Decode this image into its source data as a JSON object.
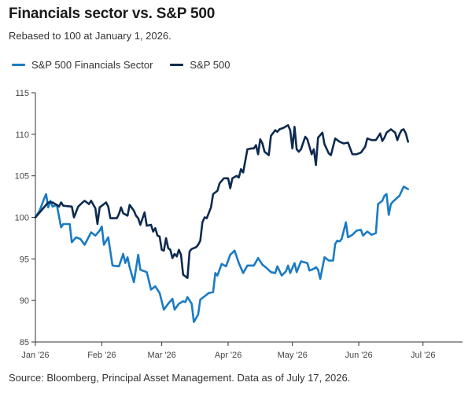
{
  "header": {
    "title": "Financials sector vs. S&P 500",
    "subtitle": "Rebased to 100 at January 1, 2026."
  },
  "footer": {
    "source": "Source: Bloomberg, Principal Asset Management. Data as of July 17, 2026."
  },
  "colors": {
    "financials": "#1a7bc4",
    "sp500": "#0d2a4f",
    "axis": "#333333"
  },
  "chart_data": {
    "type": "line",
    "x_tick_labels": [
      "Jan '26",
      "Feb '26",
      "Mar '26",
      "Apr '26",
      "May '26",
      "Jun '26",
      "Jul '26"
    ],
    "x_tick_days": [
      0,
      31,
      59,
      90,
      120,
      151,
      181
    ],
    "yticks": [
      85,
      90,
      95,
      100,
      105,
      110,
      115
    ],
    "ylim": [
      85,
      115
    ],
    "grid": false,
    "legend": "top-left",
    "series": [
      {
        "name": "S&P 500 Financials Sector",
        "color": "#1a7bc4",
        "points": [
          [
            0,
            100
          ],
          [
            2,
            100.8
          ],
          [
            4,
            102.2
          ],
          [
            5,
            102.8
          ],
          [
            6,
            101.2
          ],
          [
            7,
            102
          ],
          [
            8,
            101.3
          ],
          [
            10,
            101.5
          ],
          [
            12,
            98.8
          ],
          [
            13,
            99.2
          ],
          [
            16,
            99.2
          ],
          [
            17,
            97
          ],
          [
            19,
            97.6
          ],
          [
            21,
            97.4
          ],
          [
            23,
            96.7
          ],
          [
            26,
            98.2
          ],
          [
            28,
            97.8
          ],
          [
            30,
            98.4
          ],
          [
            31,
            98.9
          ],
          [
            32,
            96.7
          ],
          [
            34,
            97.6
          ],
          [
            36,
            94.2
          ],
          [
            39,
            94.1
          ],
          [
            41,
            95.6
          ],
          [
            42,
            94.5
          ],
          [
            43,
            95.2
          ],
          [
            44,
            94
          ],
          [
            46,
            92.2
          ],
          [
            48,
            95.5
          ],
          [
            49,
            93.7
          ],
          [
            52,
            93.4
          ],
          [
            54,
            91.3
          ],
          [
            56,
            91.7
          ],
          [
            58,
            90.9
          ],
          [
            60,
            88.9
          ],
          [
            62,
            89.6
          ],
          [
            64,
            90.2
          ],
          [
            65,
            88.9
          ],
          [
            67,
            89.6
          ],
          [
            69,
            89.9
          ],
          [
            70,
            89.8
          ],
          [
            71,
            90.4
          ],
          [
            73,
            89.6
          ],
          [
            74,
            87.4
          ],
          [
            76,
            88.3
          ],
          [
            77,
            90.1
          ],
          [
            79,
            90.5
          ],
          [
            81,
            90.9
          ],
          [
            83,
            91
          ],
          [
            84,
            93.3
          ],
          [
            85,
            93
          ],
          [
            87,
            94.4
          ],
          [
            89,
            94.1
          ],
          [
            91,
            95.5
          ],
          [
            93,
            96
          ],
          [
            95,
            94.5
          ],
          [
            97,
            93.3
          ],
          [
            99,
            94.2
          ],
          [
            102,
            94.2
          ],
          [
            104,
            95.1
          ],
          [
            106,
            94.3
          ],
          [
            108,
            93.9
          ],
          [
            110,
            93.4
          ],
          [
            112,
            93.3
          ],
          [
            113,
            94.1
          ],
          [
            115,
            93
          ],
          [
            117,
            93.5
          ],
          [
            118,
            94.2
          ],
          [
            119,
            93.3
          ],
          [
            121,
            94.5
          ],
          [
            122,
            93.4
          ],
          [
            124,
            94.7
          ],
          [
            127,
            94.5
          ],
          [
            128,
            93.6
          ],
          [
            130,
            93.8
          ],
          [
            131,
            94
          ],
          [
            132,
            93.7
          ],
          [
            133,
            92.6
          ],
          [
            135,
            95.2
          ],
          [
            137,
            94.8
          ],
          [
            139,
            94.8
          ],
          [
            140,
            96.8
          ],
          [
            141,
            97.2
          ],
          [
            142,
            97.1
          ],
          [
            143,
            97.4
          ],
          [
            145,
            99.4
          ],
          [
            146,
            97.6
          ],
          [
            148,
            97.9
          ],
          [
            150,
            98.4
          ],
          [
            152,
            98.5
          ],
          [
            153,
            97.8
          ],
          [
            155,
            98.3
          ],
          [
            157,
            97.9
          ],
          [
            159,
            98.1
          ],
          [
            160,
            101.6
          ],
          [
            162,
            102
          ],
          [
            163,
            102.6
          ],
          [
            164,
            102.8
          ],
          [
            165,
            100.3
          ],
          [
            166,
            101.6
          ],
          [
            167,
            101.9
          ],
          [
            170,
            102.6
          ],
          [
            172,
            103.7
          ],
          [
            174,
            103.4
          ]
        ]
      },
      {
        "name": "S&P 500",
        "color": "#0d2a4f",
        "points": [
          [
            0,
            100
          ],
          [
            3,
            100.9
          ],
          [
            5,
            101.5
          ],
          [
            6,
            101.8
          ],
          [
            8,
            101.8
          ],
          [
            10,
            101.5
          ],
          [
            11,
            101.3
          ],
          [
            12,
            101.8
          ],
          [
            13,
            101.4
          ],
          [
            17,
            101.3
          ],
          [
            18,
            100
          ],
          [
            20,
            101.3
          ],
          [
            22,
            101.8
          ],
          [
            23,
            102
          ],
          [
            25,
            101.6
          ],
          [
            26,
            102
          ],
          [
            28,
            101.1
          ],
          [
            29,
            99.2
          ],
          [
            30,
            101.2
          ],
          [
            32,
            101.6
          ],
          [
            33,
            101.8
          ],
          [
            34,
            101.3
          ],
          [
            35,
            99.9
          ],
          [
            38,
            99.9
          ],
          [
            39,
            100.4
          ],
          [
            40,
            101.2
          ],
          [
            41,
            100.5
          ],
          [
            43,
            100.2
          ],
          [
            44,
            101.5
          ],
          [
            46,
            100.8
          ],
          [
            47,
            100.2
          ],
          [
            48,
            99.9
          ],
          [
            49,
            99.1
          ],
          [
            51,
            100.6
          ],
          [
            52,
            99
          ],
          [
            54,
            99.1
          ],
          [
            55,
            98.3
          ],
          [
            56,
            98.7
          ],
          [
            57,
            97.8
          ],
          [
            58,
            97.7
          ],
          [
            59,
            96.1
          ],
          [
            60,
            96
          ],
          [
            61,
            97.5
          ],
          [
            62,
            96.3
          ],
          [
            63,
            96.1
          ],
          [
            64,
            95.1
          ],
          [
            65,
            95.6
          ],
          [
            66,
            95.3
          ],
          [
            67,
            96.1
          ],
          [
            68,
            95.5
          ],
          [
            69,
            93.1
          ],
          [
            70,
            92.9
          ],
          [
            71,
            92.7
          ],
          [
            72,
            95.9
          ],
          [
            73,
            96.2
          ],
          [
            75,
            96.4
          ],
          [
            76,
            96.7
          ],
          [
            77,
            97.2
          ],
          [
            78,
            99.4
          ],
          [
            79,
            100
          ],
          [
            80,
            99.9
          ],
          [
            82,
            101.2
          ],
          [
            83,
            102.8
          ],
          [
            85,
            103.2
          ],
          [
            86,
            104.1
          ],
          [
            88,
            104.7
          ],
          [
            90,
            104.7
          ],
          [
            91,
            103.5
          ],
          [
            92,
            104.7
          ],
          [
            94,
            105
          ],
          [
            95,
            104.8
          ],
          [
            96,
            105.8
          ],
          [
            97,
            105.4
          ],
          [
            98,
            106.8
          ],
          [
            99,
            108.2
          ],
          [
            101,
            108.3
          ],
          [
            102,
            108.3
          ],
          [
            103,
            108.7
          ],
          [
            104,
            107.6
          ],
          [
            105,
            109.4
          ],
          [
            106,
            108.9
          ],
          [
            107,
            107.9
          ],
          [
            109,
            107.5
          ],
          [
            110,
            109.8
          ],
          [
            112,
            110.5
          ],
          [
            113,
            110.3
          ],
          [
            114,
            110.6
          ],
          [
            116,
            110.8
          ],
          [
            118,
            111.1
          ],
          [
            119,
            110.5
          ],
          [
            120,
            108.3
          ],
          [
            121,
            110.9
          ],
          [
            122,
            108.2
          ],
          [
            123,
            107.9
          ],
          [
            124,
            108.2
          ],
          [
            126,
            109.7
          ],
          [
            127,
            109.4
          ],
          [
            129,
            107.6
          ],
          [
            130,
            108.2
          ],
          [
            131,
            106.3
          ],
          [
            132,
            109.6
          ],
          [
            134,
            110.2
          ],
          [
            135,
            108.8
          ],
          [
            137,
            107.7
          ],
          [
            138,
            107.5
          ],
          [
            140,
            109.5
          ],
          [
            142,
            109.1
          ],
          [
            144,
            108.9
          ],
          [
            146,
            109
          ],
          [
            148,
            107.6
          ],
          [
            150,
            107.6
          ],
          [
            152,
            107.8
          ],
          [
            154,
            108.5
          ],
          [
            155,
            109.5
          ],
          [
            157,
            109.3
          ],
          [
            159,
            109.3
          ],
          [
            161,
            110.1
          ],
          [
            162,
            109.2
          ],
          [
            163,
            109.6
          ],
          [
            164,
            110.2
          ],
          [
            166,
            110.6
          ],
          [
            168,
            110.2
          ],
          [
            169,
            109.3
          ],
          [
            170,
            110
          ],
          [
            171,
            110.5
          ],
          [
            172,
            110.6
          ],
          [
            173,
            110.1
          ],
          [
            174,
            109.1
          ]
        ]
      }
    ]
  }
}
